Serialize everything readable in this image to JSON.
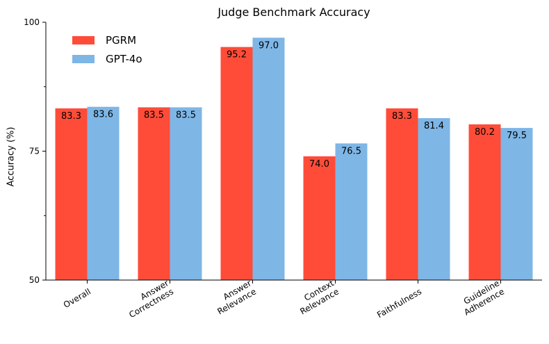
{
  "chart_data": {
    "type": "bar",
    "title": "Judge Benchmark Accuracy",
    "xlabel": "",
    "ylabel": "Accuracy (%)",
    "ylim": [
      50,
      100
    ],
    "yticks": [
      50,
      75,
      100
    ],
    "yticks_minor": [
      62.5,
      87.5
    ],
    "categories": [
      "Overall",
      "Answer\nCorrectness",
      "Answer\nRelevance",
      "Context\nRelevance",
      "Faithfulness",
      "Guideline\nAdherence"
    ],
    "series": [
      {
        "name": "PGRM",
        "color": "#ff4c38",
        "values": [
          83.3,
          83.5,
          95.2,
          74.0,
          83.3,
          80.2
        ],
        "labels": [
          "83.3",
          "83.5",
          "95.2",
          "74.0",
          "83.3",
          "80.2"
        ]
      },
      {
        "name": "GPT-4o",
        "color": "#7eb6e6",
        "values": [
          83.6,
          83.5,
          97.0,
          76.5,
          81.4,
          79.5
        ],
        "labels": [
          "83.6",
          "83.5",
          "97.0",
          "76.5",
          "81.4",
          "79.5"
        ]
      }
    ],
    "legend_position": "top-left",
    "grid": false
  }
}
